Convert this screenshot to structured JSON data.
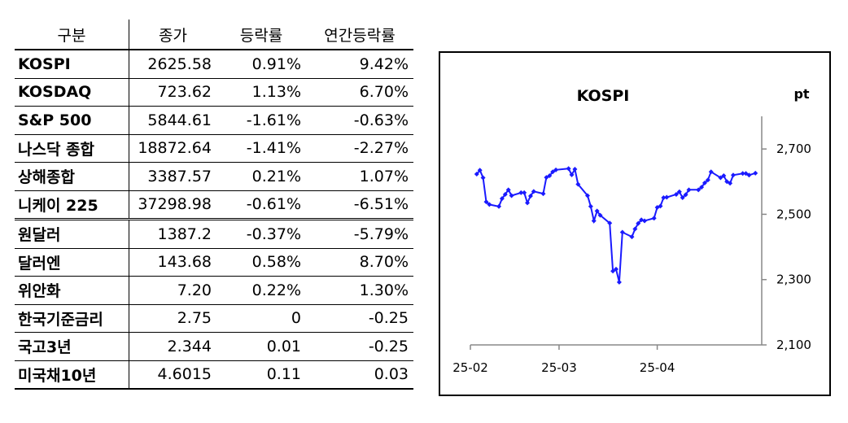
{
  "table": {
    "headers": [
      "구분",
      "종가",
      "등락률",
      "연간등락률"
    ],
    "rows": [
      {
        "name": "KOSPI",
        "close": "2625.58",
        "change": "0.91%",
        "ytd": "9.42%"
      },
      {
        "name": "KOSDAQ",
        "close": "723.62",
        "change": "1.13%",
        "ytd": "6.70%"
      },
      {
        "name": "S&P 500",
        "close": "5844.61",
        "change": "-1.61%",
        "ytd": "-0.63%"
      },
      {
        "name": "나스닥 종합",
        "close": "18872.64",
        "change": "-1.41%",
        "ytd": "-2.27%"
      },
      {
        "name": "상해종합",
        "close": "3387.57",
        "change": "0.21%",
        "ytd": "1.07%"
      },
      {
        "name": "니케이 225",
        "close": "37298.98",
        "change": "-0.61%",
        "ytd": "-6.51%"
      },
      {
        "name": "원달러",
        "close": "1387.2",
        "change": "-0.37%",
        "ytd": "-5.79%"
      },
      {
        "name": "달러엔",
        "close": "143.68",
        "change": "0.58%",
        "ytd": "8.70%"
      },
      {
        "name": "위안화",
        "close": "7.20",
        "change": "0.22%",
        "ytd": "1.30%"
      },
      {
        "name": "한국기준금리",
        "close": "2.75",
        "change": "0",
        "ytd": "-0.25"
      },
      {
        "name": "국고3년",
        "close": "2.344",
        "change": "0.01",
        "ytd": "-0.25"
      },
      {
        "name": "미국채10년",
        "close": "4.6015",
        "change": "0.11",
        "ytd": "0.03"
      }
    ]
  },
  "chart_data": {
    "type": "line",
    "title": "KOSPI",
    "ylabel": "pt",
    "ylim": [
      2100,
      2800
    ],
    "yticks": [
      2100,
      2300,
      2500,
      2700
    ],
    "ytick_labels": [
      "2,100",
      "2,300",
      "2,500",
      "2,700"
    ],
    "xtick_labels": [
      "25-02",
      "25-03",
      "25-04"
    ],
    "grid": false,
    "color": "#1a1aff",
    "series": [
      {
        "x": [
          "2025-02-03",
          "2025-02-04",
          "2025-02-05",
          "2025-02-06",
          "2025-02-07",
          "2025-02-10",
          "2025-02-11",
          "2025-02-12",
          "2025-02-13",
          "2025-02-14",
          "2025-02-17",
          "2025-02-18",
          "2025-02-19",
          "2025-02-20",
          "2025-02-21",
          "2025-02-24",
          "2025-02-25",
          "2025-02-26",
          "2025-02-27",
          "2025-02-28",
          "2025-03-04",
          "2025-03-05",
          "2025-03-06",
          "2025-03-07",
          "2025-03-10",
          "2025-03-11",
          "2025-03-12",
          "2025-03-13",
          "2025-03-14",
          "2025-03-17",
          "2025-03-18",
          "2025-03-19",
          "2025-03-20",
          "2025-03-21",
          "2025-03-24",
          "2025-03-25",
          "2025-03-26",
          "2025-03-27",
          "2025-03-28",
          "2025-03-31",
          "2025-04-01",
          "2025-04-02",
          "2025-04-03",
          "2025-04-04",
          "2025-04-07",
          "2025-04-08",
          "2025-04-09",
          "2025-04-10",
          "2025-04-11",
          "2025-04-14",
          "2025-04-15",
          "2025-04-16",
          "2025-04-17",
          "2025-04-18",
          "2025-04-21",
          "2025-04-22",
          "2025-04-23",
          "2025-04-24",
          "2025-04-25",
          "2025-04-28",
          "2025-04-29",
          "2025-04-30",
          "2025-05-02"
        ],
        "values": [
          2623,
          2635,
          2612,
          2538,
          2530,
          2524,
          2548,
          2561,
          2575,
          2557,
          2566,
          2566,
          2535,
          2556,
          2570,
          2563,
          2613,
          2618,
          2630,
          2636,
          2640,
          2621,
          2638,
          2592,
          2557,
          2524,
          2480,
          2510,
          2497,
          2473,
          2326,
          2332,
          2292,
          2445,
          2431,
          2455,
          2472,
          2483,
          2480,
          2488,
          2521,
          2525,
          2551,
          2552,
          2561,
          2569,
          2551,
          2560,
          2575,
          2575,
          2583,
          2596,
          2605,
          2630,
          2612,
          2618,
          2600,
          2595,
          2620,
          2625,
          2625,
          2620,
          2626
        ]
      }
    ]
  }
}
